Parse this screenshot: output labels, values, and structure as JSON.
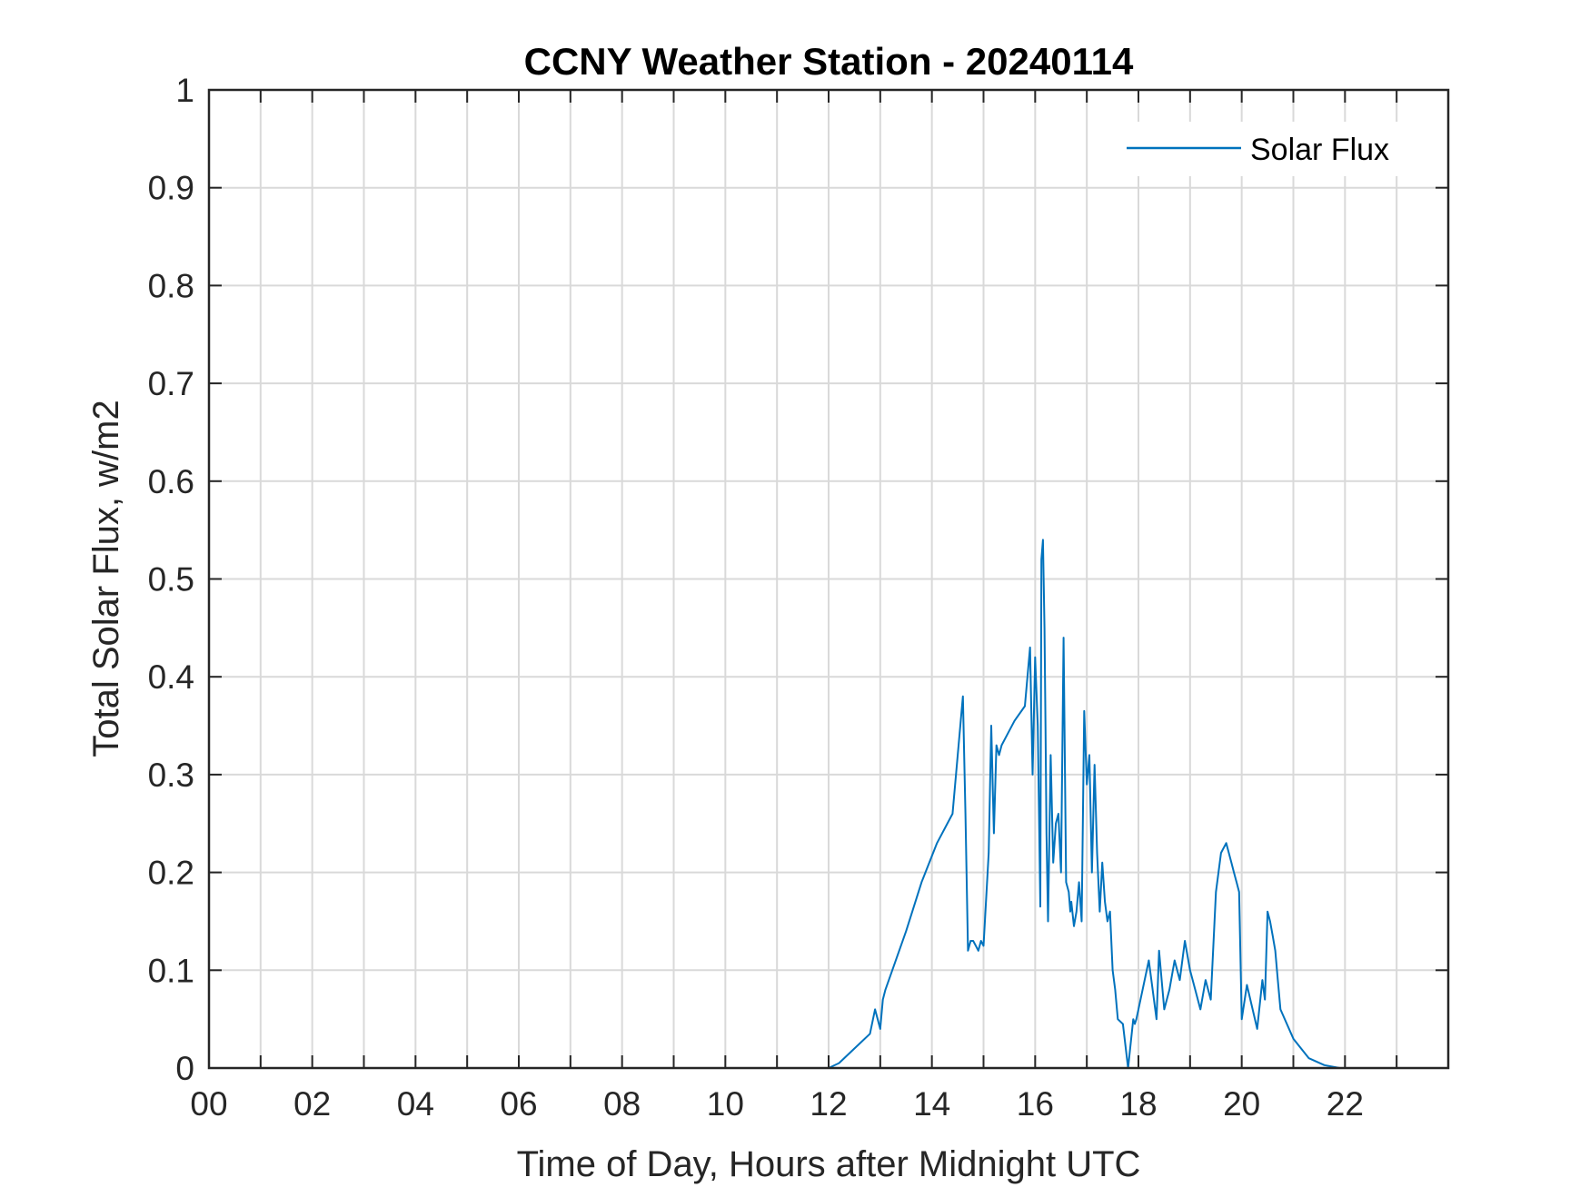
{
  "chart_data": {
    "type": "line",
    "title": "CCNY Weather Station - 20240114",
    "xlabel": "Time of Day, Hours after Midnight UTC",
    "ylabel": "Total Solar Flux, w/m2",
    "xlim": [
      0,
      24
    ],
    "ylim": [
      0,
      1
    ],
    "x_ticks": [
      0,
      2,
      4,
      6,
      8,
      10,
      12,
      14,
      16,
      18,
      20,
      22
    ],
    "x_tick_labels": [
      "00",
      "02",
      "04",
      "06",
      "08",
      "10",
      "12",
      "14",
      "16",
      "18",
      "20",
      "22"
    ],
    "y_ticks": [
      0,
      0.1,
      0.2,
      0.3,
      0.4,
      0.5,
      0.6,
      0.7,
      0.8,
      0.9,
      1
    ],
    "y_tick_labels": [
      "0",
      "0.1",
      "0.2",
      "0.3",
      "0.4",
      "0.5",
      "0.6",
      "0.7",
      "0.8",
      "0.9",
      "1"
    ],
    "grid": true,
    "legend_position": "top-right",
    "series": [
      {
        "name": "Solar Flux",
        "color": "#0072BD",
        "x": [
          0,
          12.0,
          12.2,
          12.5,
          12.8,
          12.9,
          13.0,
          13.05,
          13.1,
          13.2,
          13.5,
          13.8,
          14.1,
          14.4,
          14.6,
          14.65,
          14.7,
          14.75,
          14.8,
          14.85,
          14.9,
          14.95,
          15.0,
          15.1,
          15.15,
          15.2,
          15.25,
          15.3,
          15.35,
          15.45,
          15.6,
          15.8,
          15.9,
          15.95,
          16.0,
          16.05,
          16.1,
          16.12,
          16.15,
          16.18,
          16.2,
          16.22,
          16.25,
          16.3,
          16.35,
          16.4,
          16.45,
          16.5,
          16.55,
          16.6,
          16.65,
          16.68,
          16.7,
          16.75,
          16.8,
          16.85,
          16.9,
          16.95,
          17.0,
          17.05,
          17.1,
          17.15,
          17.2,
          17.25,
          17.3,
          17.35,
          17.4,
          17.45,
          17.5,
          17.55,
          17.6,
          17.7,
          17.8,
          17.9,
          17.93,
          17.96,
          18.0,
          18.2,
          18.35,
          18.4,
          18.5,
          18.6,
          18.7,
          18.8,
          18.9,
          19.0,
          19.1,
          19.2,
          19.3,
          19.4,
          19.5,
          19.6,
          19.7,
          19.8,
          19.85,
          19.9,
          19.95,
          20.0,
          20.1,
          20.3,
          20.4,
          20.45,
          20.5,
          20.55,
          20.6,
          20.65,
          20.7,
          20.75,
          21.0,
          21.3,
          21.6,
          21.9,
          22.2,
          24.0
        ],
        "y": [
          0,
          0,
          0.005,
          0.02,
          0.035,
          0.06,
          0.04,
          0.07,
          0.08,
          0.095,
          0.14,
          0.19,
          0.23,
          0.26,
          0.38,
          0.26,
          0.12,
          0.13,
          0.13,
          0.125,
          0.12,
          0.13,
          0.125,
          0.22,
          0.35,
          0.24,
          0.33,
          0.32,
          0.33,
          0.34,
          0.355,
          0.37,
          0.43,
          0.3,
          0.42,
          0.35,
          0.165,
          0.52,
          0.54,
          0.45,
          0.35,
          0.24,
          0.15,
          0.32,
          0.21,
          0.25,
          0.26,
          0.2,
          0.44,
          0.19,
          0.18,
          0.16,
          0.17,
          0.145,
          0.16,
          0.19,
          0.15,
          0.365,
          0.29,
          0.32,
          0.2,
          0.31,
          0.22,
          0.16,
          0.21,
          0.17,
          0.15,
          0.16,
          0.1,
          0.08,
          0.05,
          0.045,
          0.0,
          0.05,
          0.045,
          0.05,
          0.06,
          0.11,
          0.05,
          0.12,
          0.06,
          0.08,
          0.11,
          0.09,
          0.13,
          0.1,
          0.08,
          0.06,
          0.09,
          0.07,
          0.18,
          0.22,
          0.23,
          0.21,
          0.2,
          0.19,
          0.18,
          0.05,
          0.085,
          0.04,
          0.09,
          0.07,
          0.16,
          0.15,
          0.135,
          0.12,
          0.09,
          0.06,
          0.03,
          0.01,
          0.003,
          0,
          0,
          0
        ]
      }
    ]
  }
}
